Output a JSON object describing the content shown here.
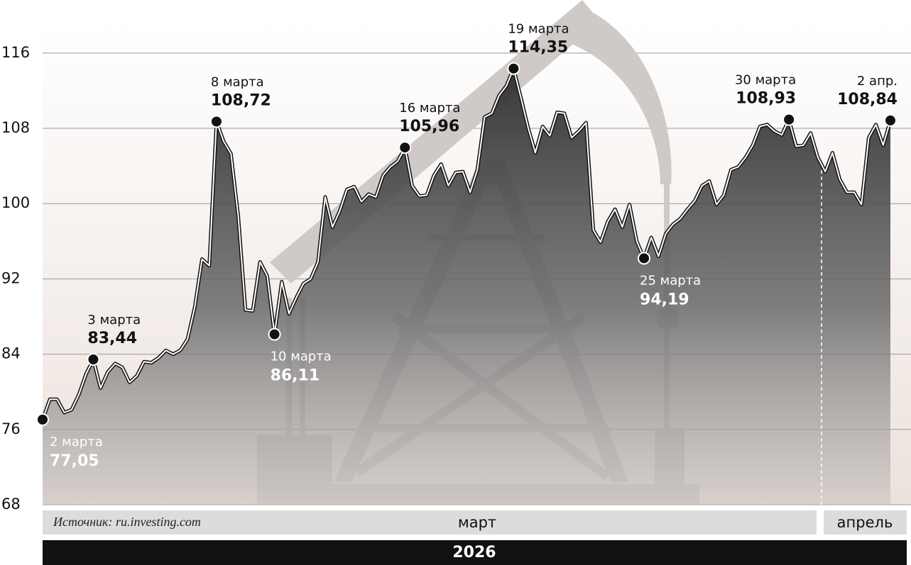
{
  "chart_data": {
    "type": "area",
    "color": "#3c3c3c",
    "ylim": [
      68,
      119
    ],
    "yticks": [
      68,
      76,
      84,
      92,
      100,
      108,
      116
    ],
    "grid": true,
    "values": [
      77.05,
      79.2,
      79.2,
      77.8,
      78.1,
      79.7,
      81.9,
      83.44,
      80.4,
      82.1,
      83.0,
      82.6,
      81.0,
      81.7,
      83.2,
      83.1,
      83.6,
      84.4,
      84.0,
      84.4,
      85.6,
      89.0,
      94.1,
      93.4,
      108.72,
      106.6,
      105.3,
      98.7,
      88.7,
      88.6,
      93.8,
      92.3,
      86.11,
      91.7,
      88.3,
      90.0,
      91.5,
      92.0,
      93.8,
      100.7,
      97.5,
      99.2,
      101.5,
      101.8,
      100.2,
      101.0,
      100.7,
      103.0,
      103.9,
      104.5,
      105.96,
      101.9,
      100.8,
      100.9,
      103.0,
      104.2,
      101.9,
      103.3,
      103.4,
      101.2,
      103.6,
      109.2,
      109.6,
      111.5,
      112.5,
      114.35,
      111.3,
      108.1,
      105.4,
      108.2,
      107.2,
      109.7,
      109.6,
      107.0,
      107.7,
      108.6,
      97.2,
      95.9,
      98.1,
      99.4,
      97.5,
      99.9,
      96.0,
      94.19,
      96.4,
      94.4,
      96.8,
      97.8,
      98.4,
      99.4,
      100.3,
      101.9,
      102.4,
      99.9,
      100.9,
      103.6,
      103.9,
      104.9,
      106.2,
      108.2,
      108.4,
      107.7,
      107.3,
      108.93,
      106.1,
      106.2,
      107.5,
      104.9,
      103.4,
      105.4,
      102.6,
      101.2,
      101.2,
      99.9,
      107.0,
      108.4,
      106.2,
      108.84
    ],
    "categories": [
      "2 марта",
      null,
      null,
      null,
      null,
      null,
      null,
      "3 марта",
      null,
      null,
      null,
      null,
      null,
      null,
      null,
      null,
      null,
      null,
      null,
      null,
      null,
      null,
      null,
      null,
      "8 марта",
      null,
      null,
      null,
      null,
      null,
      null,
      null,
      "10 марта",
      null,
      null,
      null,
      null,
      null,
      null,
      null,
      null,
      null,
      null,
      null,
      null,
      null,
      null,
      null,
      null,
      null,
      "16 марта",
      null,
      null,
      null,
      null,
      null,
      null,
      null,
      null,
      null,
      null,
      null,
      null,
      null,
      null,
      "19 марта",
      null,
      null,
      null,
      null,
      null,
      null,
      null,
      null,
      null,
      null,
      null,
      null,
      null,
      null,
      null,
      null,
      null,
      "25 марта",
      null,
      null,
      null,
      null,
      null,
      null,
      null,
      null,
      null,
      null,
      null,
      null,
      null,
      null,
      null,
      null,
      null,
      null,
      null,
      "30 марта",
      null,
      null,
      null,
      null,
      null,
      null,
      null,
      null,
      null,
      null,
      null,
      null,
      null,
      "2 апр."
    ],
    "value_labels": [
      "77,05",
      null,
      null,
      null,
      null,
      null,
      null,
      "83,44",
      null,
      null,
      null,
      null,
      null,
      null,
      null,
      null,
      null,
      null,
      null,
      null,
      null,
      null,
      null,
      null,
      "108,72",
      null,
      null,
      null,
      null,
      null,
      null,
      null,
      "86,11",
      null,
      null,
      null,
      null,
      null,
      null,
      null,
      null,
      null,
      null,
      null,
      null,
      null,
      null,
      null,
      null,
      null,
      "105,96",
      null,
      null,
      null,
      null,
      null,
      null,
      null,
      null,
      null,
      null,
      null,
      null,
      null,
      null,
      "114,35",
      null,
      null,
      null,
      null,
      null,
      null,
      null,
      null,
      null,
      null,
      null,
      null,
      null,
      null,
      null,
      null,
      null,
      "94,19",
      null,
      null,
      null,
      null,
      null,
      null,
      null,
      null,
      null,
      null,
      null,
      null,
      null,
      null,
      null,
      null,
      null,
      null,
      null,
      "108,93",
      null,
      null,
      null,
      null,
      null,
      null,
      null,
      null,
      null,
      null,
      null,
      null,
      null,
      "108,84"
    ],
    "source": "Источник: ru.investing.com",
    "months": [
      "март",
      "апрель"
    ],
    "year": "2026"
  }
}
